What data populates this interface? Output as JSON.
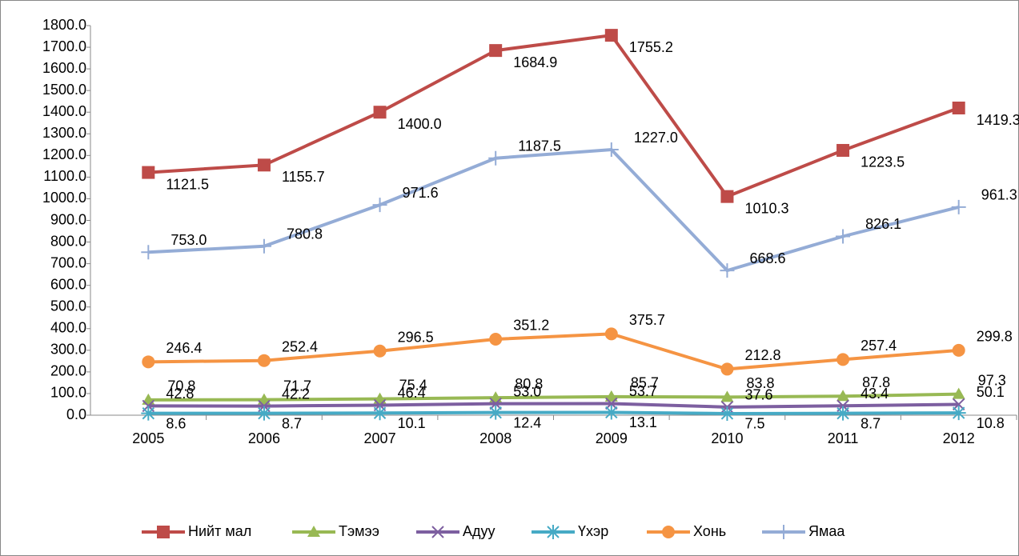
{
  "chart_data": {
    "type": "line",
    "categories": [
      "2005",
      "2006",
      "2007",
      "2008",
      "2009",
      "2010",
      "2011",
      "2012"
    ],
    "series": [
      {
        "name": "Нийт мал",
        "color": "#be4b48",
        "marker": "square",
        "values": [
          1121.5,
          1155.7,
          1400.0,
          1684.9,
          1755.2,
          1010.3,
          1223.5,
          1419.3
        ],
        "value_labels": [
          "1121.5",
          "1155.7",
          "1400.0",
          "1684.9",
          "1755.2",
          "1010.3",
          "1223.5",
          "1419.3"
        ]
      },
      {
        "name": "Тэмээ",
        "color": "#98b954",
        "marker": "triangle",
        "values": [
          70.8,
          71.7,
          75.4,
          80.8,
          85.7,
          83.8,
          87.8,
          97.3
        ],
        "value_labels": [
          "70.8",
          "71.7",
          "75.4",
          "80.8",
          "85.7",
          "83.8",
          "87.8",
          "97.3"
        ]
      },
      {
        "name": "Адуу",
        "color": "#7d5fa0",
        "marker": "x",
        "values": [
          42.8,
          42.2,
          46.4,
          53.0,
          53.7,
          37.6,
          43.4,
          50.1
        ],
        "value_labels": [
          "42.8",
          "42.2",
          "46.4",
          "53.0",
          "53.7",
          "37.6",
          "43.4",
          "50.1"
        ]
      },
      {
        "name": "Үхэр",
        "color": "#46aac5",
        "marker": "asterisk",
        "values": [
          8.6,
          8.7,
          10.1,
          12.4,
          13.1,
          7.5,
          8.7,
          10.8
        ],
        "value_labels": [
          "8.6",
          "8.7",
          "10.1",
          "12.4",
          "13.1",
          "7.5",
          "8.7",
          "10.8"
        ]
      },
      {
        "name": "Хонь",
        "color": "#f59443",
        "marker": "circle",
        "values": [
          246.4,
          252.4,
          296.5,
          351.2,
          375.7,
          212.8,
          257.4,
          299.8
        ],
        "value_labels": [
          "246.4",
          "252.4",
          "296.5",
          "351.2",
          "375.7",
          "212.8",
          "257.4",
          "299.8"
        ]
      },
      {
        "name": "Ямаа",
        "color": "#94acd6",
        "marker": "plus",
        "values": [
          753.0,
          780.8,
          971.6,
          1187.5,
          1227.0,
          668.6,
          826.1,
          961.3
        ],
        "value_labels": [
          "753.0",
          "780.8",
          "971.6",
          "1187.5",
          "1227.0",
          "668.6",
          "826.1",
          "961.3"
        ]
      }
    ],
    "ylim": [
      0,
      1800
    ],
    "yticks": [
      {
        "value": 0,
        "label": "0.0"
      },
      {
        "value": 100,
        "label": "100.0"
      },
      {
        "value": 200,
        "label": "200.0"
      },
      {
        "value": 300,
        "label": "300.0"
      },
      {
        "value": 400,
        "label": "400.0"
      },
      {
        "value": 500,
        "label": "500.0"
      },
      {
        "value": 600,
        "label": "600.0"
      },
      {
        "value": 700,
        "label": "700.0"
      },
      {
        "value": 800,
        "label": "800.0"
      },
      {
        "value": 900,
        "label": "900.0"
      },
      {
        "value": 1000,
        "label": "1000.0"
      },
      {
        "value": 1100,
        "label": "1100.0"
      },
      {
        "value": 1200,
        "label": "1200.0"
      },
      {
        "value": 1300,
        "label": "1300.0"
      },
      {
        "value": 1400,
        "label": "1400.0"
      },
      {
        "value": 1500,
        "label": "1500.0"
      },
      {
        "value": 1600,
        "label": "1600.0"
      },
      {
        "value": 1700,
        "label": "1700.0"
      },
      {
        "value": 1800,
        "label": "1800.0"
      }
    ],
    "grid": false,
    "legend": "bottom"
  }
}
